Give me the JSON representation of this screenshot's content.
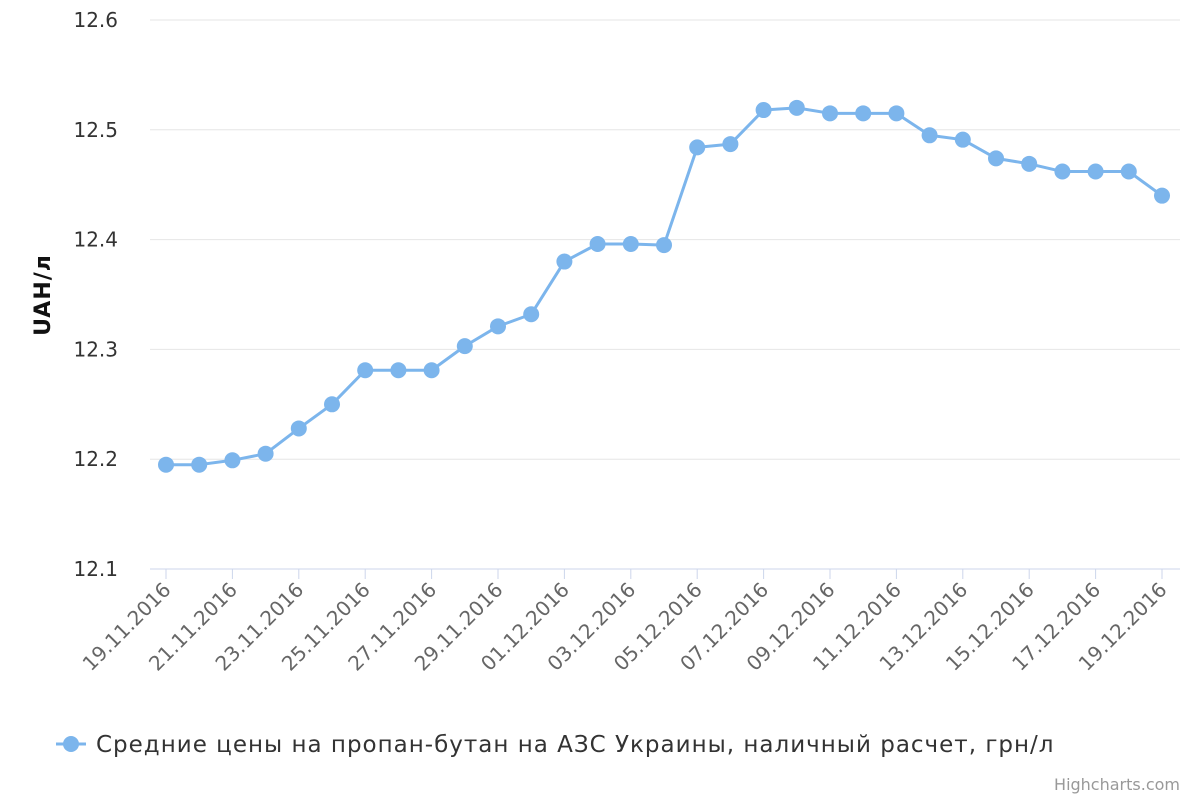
{
  "chart_data": {
    "type": "line",
    "ylabel": "UAH/л",
    "xlabel": "",
    "ylim": [
      12.1,
      12.6
    ],
    "yticks": [
      "12.1",
      "12.2",
      "12.3",
      "12.4",
      "12.5",
      "12.6"
    ],
    "x_tick_labels": [
      "19.11.2016",
      "21.11.2016",
      "23.11.2016",
      "25.11.2016",
      "27.11.2016",
      "29.11.2016",
      "01.12.2016",
      "03.12.2016",
      "05.12.2016",
      "07.12.2016",
      "09.12.2016",
      "11.12.2016",
      "13.12.2016",
      "15.12.2016",
      "17.12.2016",
      "19.12.2016"
    ],
    "grid": true,
    "legend_position": "bottom",
    "series_color": "#7cb5ec",
    "series": [
      {
        "name": "Средние цены на пропан-бутан на АЗС Украины, наличный расчет, грн/л",
        "x": [
          "19.11.2016",
          "20.11.2016",
          "21.11.2016",
          "22.11.2016",
          "23.11.2016",
          "24.11.2016",
          "25.11.2016",
          "26.11.2016",
          "27.11.2016",
          "28.11.2016",
          "29.11.2016",
          "30.11.2016",
          "01.12.2016",
          "02.12.2016",
          "03.12.2016",
          "04.12.2016",
          "05.12.2016",
          "06.12.2016",
          "07.12.2016",
          "08.12.2016",
          "09.12.2016",
          "10.12.2016",
          "11.12.2016",
          "12.12.2016",
          "13.12.2016",
          "14.12.2016",
          "15.12.2016",
          "16.12.2016",
          "17.12.2016",
          "18.12.2016",
          "19.12.2016"
        ],
        "values": [
          12.195,
          12.195,
          12.199,
          12.205,
          12.228,
          12.25,
          12.281,
          12.281,
          12.281,
          12.303,
          12.321,
          12.332,
          12.38,
          12.396,
          12.396,
          12.395,
          12.484,
          12.487,
          12.518,
          12.52,
          12.515,
          12.515,
          12.515,
          12.495,
          12.491,
          12.474,
          12.469,
          12.462,
          12.462,
          12.462,
          12.44
        ]
      }
    ]
  },
  "credits": "Highcharts.com"
}
